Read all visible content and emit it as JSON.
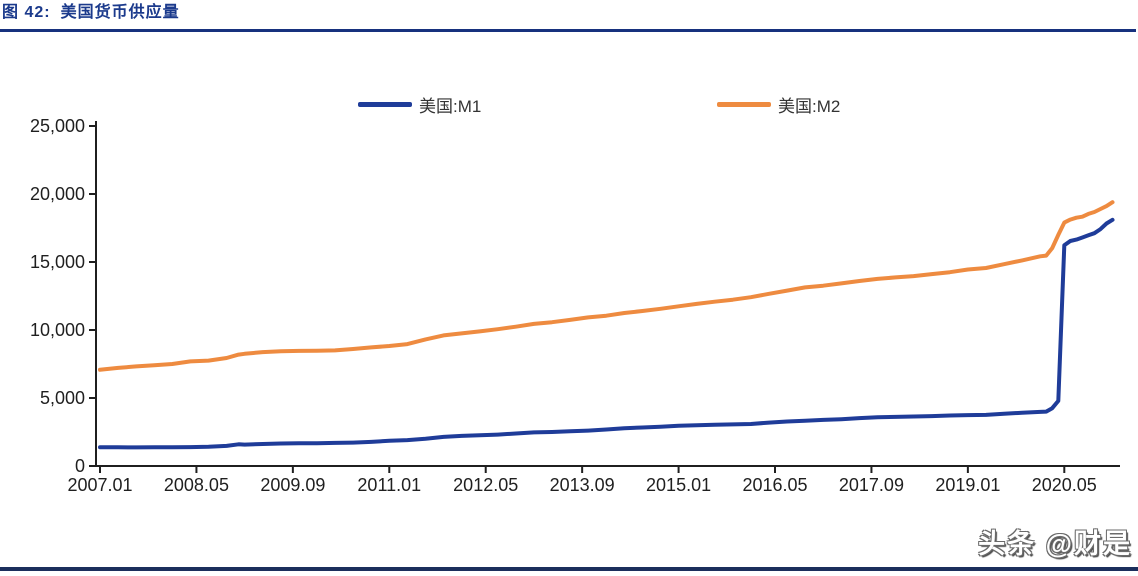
{
  "header": {
    "figure_label": "图 42:",
    "title": "美国货币供应量"
  },
  "watermark": "头条 @财是",
  "colors": {
    "title_navy": "#1b3a8c",
    "underline_navy": "#17317e",
    "bottom_bar_navy": "#1b2e5c",
    "m1_blue": "#1f3c99",
    "m2_orange": "#ee8b40",
    "axis_black": "#1f1f1f"
  },
  "chart_data": {
    "type": "line",
    "title": "美国货币供应量",
    "x_unit": "months_since_2007_01",
    "x_tick_labels": [
      "2007.01",
      "2008.05",
      "2009.09",
      "2011.01",
      "2012.05",
      "2013.09",
      "2015.01",
      "2016.05",
      "2017.09",
      "2019.01",
      "2020.05"
    ],
    "x_tick_positions": [
      0,
      16,
      32,
      48,
      64,
      80,
      96,
      112,
      128,
      144,
      160
    ],
    "x_max": 168,
    "ylim": [
      0,
      25000
    ],
    "y_ticks": [
      0,
      5000,
      10000,
      15000,
      20000,
      25000
    ],
    "y_tick_labels": [
      "0",
      "5,000",
      "10,000",
      "15,000",
      "20,000",
      "25,000"
    ],
    "grid": false,
    "legend_position": "top",
    "series": [
      {
        "name": "美国:M1",
        "color": "#1f3c99",
        "points": [
          [
            0,
            1374
          ],
          [
            3,
            1378
          ],
          [
            6,
            1369
          ],
          [
            9,
            1380
          ],
          [
            12,
            1379
          ],
          [
            15,
            1390
          ],
          [
            18,
            1415
          ],
          [
            21,
            1475
          ],
          [
            23,
            1595
          ],
          [
            24,
            1575
          ],
          [
            27,
            1615
          ],
          [
            30,
            1655
          ],
          [
            33,
            1675
          ],
          [
            36,
            1680
          ],
          [
            39,
            1700
          ],
          [
            42,
            1720
          ],
          [
            45,
            1770
          ],
          [
            48,
            1855
          ],
          [
            51,
            1905
          ],
          [
            54,
            2010
          ],
          [
            57,
            2140
          ],
          [
            60,
            2215
          ],
          [
            63,
            2260
          ],
          [
            66,
            2310
          ],
          [
            69,
            2390
          ],
          [
            72,
            2470
          ],
          [
            75,
            2500
          ],
          [
            78,
            2550
          ],
          [
            81,
            2605
          ],
          [
            84,
            2685
          ],
          [
            87,
            2780
          ],
          [
            90,
            2830
          ],
          [
            93,
            2880
          ],
          [
            96,
            2965
          ],
          [
            99,
            3000
          ],
          [
            102,
            3040
          ],
          [
            105,
            3060
          ],
          [
            108,
            3090
          ],
          [
            111,
            3190
          ],
          [
            114,
            3270
          ],
          [
            117,
            3330
          ],
          [
            120,
            3390
          ],
          [
            123,
            3440
          ],
          [
            126,
            3520
          ],
          [
            129,
            3590
          ],
          [
            132,
            3610
          ],
          [
            135,
            3640
          ],
          [
            138,
            3670
          ],
          [
            141,
            3710
          ],
          [
            144,
            3740
          ],
          [
            147,
            3760
          ],
          [
            150,
            3840
          ],
          [
            153,
            3920
          ],
          [
            156,
            3975
          ],
          [
            157,
            4000
          ],
          [
            158,
            4250
          ],
          [
            159,
            4790
          ],
          [
            160,
            16230
          ],
          [
            161,
            16545
          ],
          [
            162,
            16650
          ],
          [
            163,
            16800
          ],
          [
            164,
            16960
          ],
          [
            165,
            17120
          ],
          [
            166,
            17420
          ],
          [
            167,
            17830
          ],
          [
            168,
            18100
          ]
        ]
      },
      {
        "name": "美国:M2",
        "color": "#ee8b40",
        "points": [
          [
            0,
            7075
          ],
          [
            3,
            7215
          ],
          [
            6,
            7320
          ],
          [
            9,
            7415
          ],
          [
            12,
            7500
          ],
          [
            15,
            7690
          ],
          [
            18,
            7750
          ],
          [
            21,
            7940
          ],
          [
            23,
            8190
          ],
          [
            24,
            8250
          ],
          [
            27,
            8375
          ],
          [
            30,
            8440
          ],
          [
            33,
            8460
          ],
          [
            36,
            8480
          ],
          [
            39,
            8500
          ],
          [
            42,
            8600
          ],
          [
            45,
            8720
          ],
          [
            48,
            8820
          ],
          [
            51,
            8960
          ],
          [
            54,
            9310
          ],
          [
            57,
            9600
          ],
          [
            60,
            9750
          ],
          [
            63,
            9900
          ],
          [
            66,
            10060
          ],
          [
            69,
            10240
          ],
          [
            72,
            10450
          ],
          [
            75,
            10570
          ],
          [
            78,
            10740
          ],
          [
            81,
            10930
          ],
          [
            84,
            11055
          ],
          [
            87,
            11250
          ],
          [
            90,
            11400
          ],
          [
            93,
            11560
          ],
          [
            96,
            11745
          ],
          [
            99,
            11920
          ],
          [
            102,
            12080
          ],
          [
            105,
            12230
          ],
          [
            108,
            12410
          ],
          [
            111,
            12660
          ],
          [
            114,
            12900
          ],
          [
            117,
            13130
          ],
          [
            120,
            13260
          ],
          [
            123,
            13430
          ],
          [
            126,
            13600
          ],
          [
            129,
            13760
          ],
          [
            132,
            13870
          ],
          [
            135,
            13960
          ],
          [
            138,
            14110
          ],
          [
            141,
            14250
          ],
          [
            144,
            14450
          ],
          [
            147,
            14560
          ],
          [
            150,
            14840
          ],
          [
            153,
            15120
          ],
          [
            156,
            15420
          ],
          [
            157,
            15470
          ],
          [
            158,
            16020
          ],
          [
            159,
            16990
          ],
          [
            160,
            17900
          ],
          [
            161,
            18120
          ],
          [
            162,
            18260
          ],
          [
            163,
            18330
          ],
          [
            164,
            18540
          ],
          [
            165,
            18680
          ],
          [
            166,
            18900
          ],
          [
            167,
            19110
          ],
          [
            168,
            19400
          ]
        ]
      }
    ]
  }
}
